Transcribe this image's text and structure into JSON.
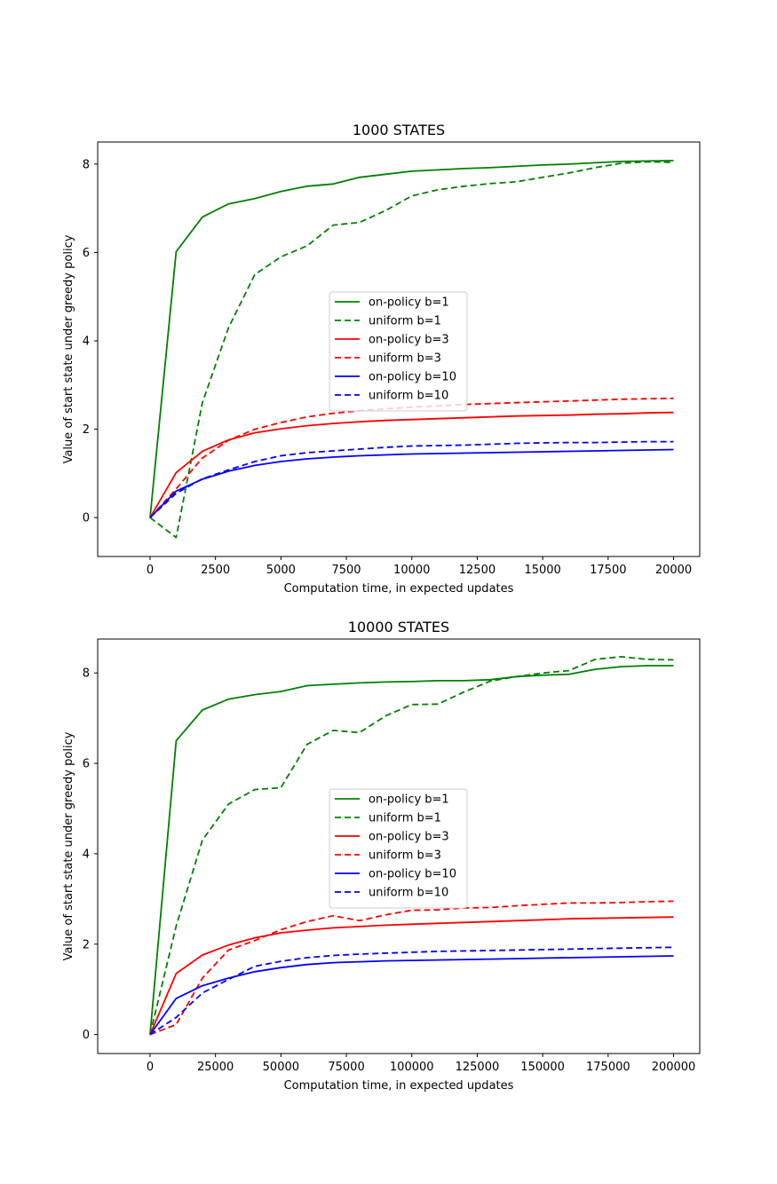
{
  "chart_data": [
    {
      "type": "line",
      "title": "1000 STATES",
      "xlabel": "Computation time, in expected updates",
      "ylabel": "Value of start state under greedy policy",
      "xlim": [
        -2000,
        21000
      ],
      "ylim": [
        -0.88,
        8.5
      ],
      "xticks": [
        0,
        2500,
        5000,
        7500,
        10000,
        12500,
        15000,
        17500,
        20000
      ],
      "xtick_labels": [
        "0",
        "2500",
        "5000",
        "7500",
        "10000",
        "12500",
        "15000",
        "17500",
        "20000"
      ],
      "yticks": [
        0,
        2,
        4,
        6,
        8
      ],
      "ytick_labels": [
        "0",
        "2",
        "4",
        "6",
        "8"
      ],
      "grid": false,
      "legend_position": "center",
      "series": [
        {
          "name": "on-policy b=1",
          "color": "#008000",
          "dash": "solid",
          "x": [
            0,
            1000,
            2000,
            3000,
            4000,
            5000,
            6000,
            7000,
            8000,
            9000,
            10000,
            11000,
            12000,
            13000,
            14000,
            15000,
            16000,
            17000,
            18000,
            19000,
            20000
          ],
          "y": [
            0,
            6.02,
            6.8,
            7.1,
            7.22,
            7.38,
            7.5,
            7.55,
            7.7,
            7.77,
            7.84,
            7.87,
            7.9,
            7.92,
            7.95,
            7.98,
            8.0,
            8.03,
            8.06,
            8.07,
            8.08
          ]
        },
        {
          "name": "uniform b=1",
          "color": "#008000",
          "dash": "dashed",
          "x": [
            0,
            1000,
            2000,
            3000,
            4000,
            5000,
            6000,
            7000,
            8000,
            9000,
            10000,
            11000,
            12000,
            13000,
            14000,
            15000,
            16000,
            17000,
            18000,
            19000,
            20000
          ],
          "y": [
            0,
            -0.45,
            2.6,
            4.3,
            5.5,
            5.9,
            6.15,
            6.62,
            6.68,
            6.95,
            7.28,
            7.42,
            7.5,
            7.56,
            7.6,
            7.7,
            7.8,
            7.92,
            8.02,
            8.05,
            8.04
          ]
        },
        {
          "name": "on-policy b=3",
          "color": "#ff0000",
          "dash": "solid",
          "x": [
            0,
            1000,
            2000,
            3000,
            4000,
            5000,
            6000,
            7000,
            8000,
            9000,
            10000,
            11000,
            12000,
            13000,
            14000,
            15000,
            16000,
            17000,
            18000,
            19000,
            20000
          ],
          "y": [
            0,
            1.02,
            1.5,
            1.76,
            1.92,
            2.01,
            2.08,
            2.13,
            2.17,
            2.2,
            2.22,
            2.24,
            2.26,
            2.28,
            2.3,
            2.31,
            2.32,
            2.34,
            2.35,
            2.37,
            2.38
          ]
        },
        {
          "name": "uniform b=3",
          "color": "#ff0000",
          "dash": "dashed",
          "x": [
            0,
            1000,
            2000,
            3000,
            4000,
            5000,
            6000,
            7000,
            8000,
            9000,
            10000,
            11000,
            12000,
            13000,
            14000,
            15000,
            16000,
            17000,
            18000,
            19000,
            20000
          ],
          "y": [
            0,
            0.65,
            1.35,
            1.75,
            2.0,
            2.15,
            2.28,
            2.36,
            2.42,
            2.46,
            2.5,
            2.53,
            2.56,
            2.58,
            2.6,
            2.62,
            2.64,
            2.66,
            2.68,
            2.69,
            2.7
          ]
        },
        {
          "name": "on-policy b=10",
          "color": "#0000ff",
          "dash": "solid",
          "x": [
            0,
            1000,
            2000,
            3000,
            4000,
            5000,
            6000,
            7000,
            8000,
            9000,
            10000,
            11000,
            12000,
            13000,
            14000,
            15000,
            16000,
            17000,
            18000,
            19000,
            20000
          ],
          "y": [
            0,
            0.6,
            0.87,
            1.05,
            1.18,
            1.27,
            1.33,
            1.37,
            1.4,
            1.42,
            1.44,
            1.45,
            1.46,
            1.47,
            1.48,
            1.49,
            1.5,
            1.51,
            1.52,
            1.53,
            1.54
          ]
        },
        {
          "name": "uniform b=10",
          "color": "#0000ff",
          "dash": "dashed",
          "x": [
            0,
            1000,
            2000,
            3000,
            4000,
            5000,
            6000,
            7000,
            8000,
            9000,
            10000,
            11000,
            12000,
            13000,
            14000,
            15000,
            16000,
            17000,
            18000,
            19000,
            20000
          ],
          "y": [
            0,
            0.55,
            0.88,
            1.08,
            1.27,
            1.4,
            1.47,
            1.51,
            1.55,
            1.59,
            1.62,
            1.63,
            1.64,
            1.66,
            1.68,
            1.69,
            1.7,
            1.7,
            1.71,
            1.72,
            1.72
          ]
        }
      ]
    },
    {
      "type": "line",
      "title": "10000 STATES",
      "xlabel": "Computation time, in expected updates",
      "ylabel": "Value of start state under greedy policy",
      "xlim": [
        -20000,
        210000
      ],
      "ylim": [
        -0.42,
        8.75
      ],
      "xticks": [
        0,
        25000,
        50000,
        75000,
        100000,
        125000,
        150000,
        175000,
        200000
      ],
      "xtick_labels": [
        "0",
        "25000",
        "50000",
        "75000",
        "100000",
        "125000",
        "150000",
        "175000",
        "200000"
      ],
      "yticks": [
        0,
        2,
        4,
        6,
        8
      ],
      "ytick_labels": [
        "0",
        "2",
        "4",
        "6",
        "8"
      ],
      "grid": false,
      "legend_position": "center",
      "series": [
        {
          "name": "on-policy b=1",
          "color": "#008000",
          "dash": "solid",
          "x": [
            0,
            10000,
            20000,
            30000,
            40000,
            50000,
            60000,
            70000,
            80000,
            90000,
            100000,
            110000,
            120000,
            130000,
            140000,
            150000,
            160000,
            170000,
            180000,
            190000,
            200000
          ],
          "y": [
            0,
            6.5,
            7.18,
            7.42,
            7.52,
            7.59,
            7.72,
            7.75,
            7.78,
            7.8,
            7.81,
            7.83,
            7.83,
            7.85,
            7.92,
            7.95,
            7.97,
            8.08,
            8.14,
            8.16,
            8.16
          ]
        },
        {
          "name": "uniform b=1",
          "color": "#008000",
          "dash": "dashed",
          "x": [
            0,
            10000,
            20000,
            30000,
            40000,
            50000,
            60000,
            70000,
            80000,
            90000,
            100000,
            110000,
            120000,
            130000,
            140000,
            150000,
            160000,
            170000,
            180000,
            190000,
            200000
          ],
          "y": [
            0,
            2.4,
            4.3,
            5.1,
            5.42,
            5.46,
            6.42,
            6.73,
            6.68,
            7.05,
            7.3,
            7.31,
            7.58,
            7.82,
            7.92,
            8.0,
            8.05,
            8.3,
            8.36,
            8.3,
            8.29
          ]
        },
        {
          "name": "on-policy b=3",
          "color": "#ff0000",
          "dash": "solid",
          "x": [
            0,
            10000,
            20000,
            30000,
            40000,
            50000,
            60000,
            70000,
            80000,
            90000,
            100000,
            110000,
            120000,
            130000,
            140000,
            150000,
            160000,
            170000,
            180000,
            190000,
            200000
          ],
          "y": [
            0,
            1.35,
            1.76,
            1.98,
            2.14,
            2.25,
            2.31,
            2.36,
            2.39,
            2.42,
            2.44,
            2.46,
            2.48,
            2.5,
            2.52,
            2.54,
            2.56,
            2.57,
            2.58,
            2.59,
            2.6
          ]
        },
        {
          "name": "uniform b=3",
          "color": "#ff0000",
          "dash": "dashed",
          "x": [
            0,
            10000,
            20000,
            30000,
            40000,
            50000,
            60000,
            70000,
            80000,
            90000,
            100000,
            110000,
            120000,
            130000,
            140000,
            150000,
            160000,
            170000,
            180000,
            190000,
            200000
          ],
          "y": [
            0,
            0.22,
            1.25,
            1.87,
            2.08,
            2.32,
            2.5,
            2.63,
            2.52,
            2.65,
            2.75,
            2.76,
            2.8,
            2.81,
            2.85,
            2.88,
            2.91,
            2.91,
            2.92,
            2.94,
            2.95
          ]
        },
        {
          "name": "on-policy b=10",
          "color": "#0000ff",
          "dash": "solid",
          "x": [
            0,
            10000,
            20000,
            30000,
            40000,
            50000,
            60000,
            70000,
            80000,
            90000,
            100000,
            110000,
            120000,
            130000,
            140000,
            150000,
            160000,
            170000,
            180000,
            190000,
            200000
          ],
          "y": [
            0,
            0.8,
            1.08,
            1.25,
            1.39,
            1.48,
            1.55,
            1.59,
            1.61,
            1.63,
            1.64,
            1.65,
            1.66,
            1.67,
            1.68,
            1.69,
            1.7,
            1.71,
            1.72,
            1.73,
            1.74
          ]
        },
        {
          "name": "uniform b=10",
          "color": "#0000ff",
          "dash": "dashed",
          "x": [
            0,
            10000,
            20000,
            30000,
            40000,
            50000,
            60000,
            70000,
            80000,
            90000,
            100000,
            110000,
            120000,
            130000,
            140000,
            150000,
            160000,
            170000,
            180000,
            190000,
            200000
          ],
          "y": [
            0,
            0.38,
            0.92,
            1.22,
            1.51,
            1.62,
            1.7,
            1.75,
            1.78,
            1.8,
            1.82,
            1.84,
            1.85,
            1.86,
            1.87,
            1.88,
            1.89,
            1.9,
            1.91,
            1.92,
            1.93
          ]
        }
      ]
    }
  ]
}
